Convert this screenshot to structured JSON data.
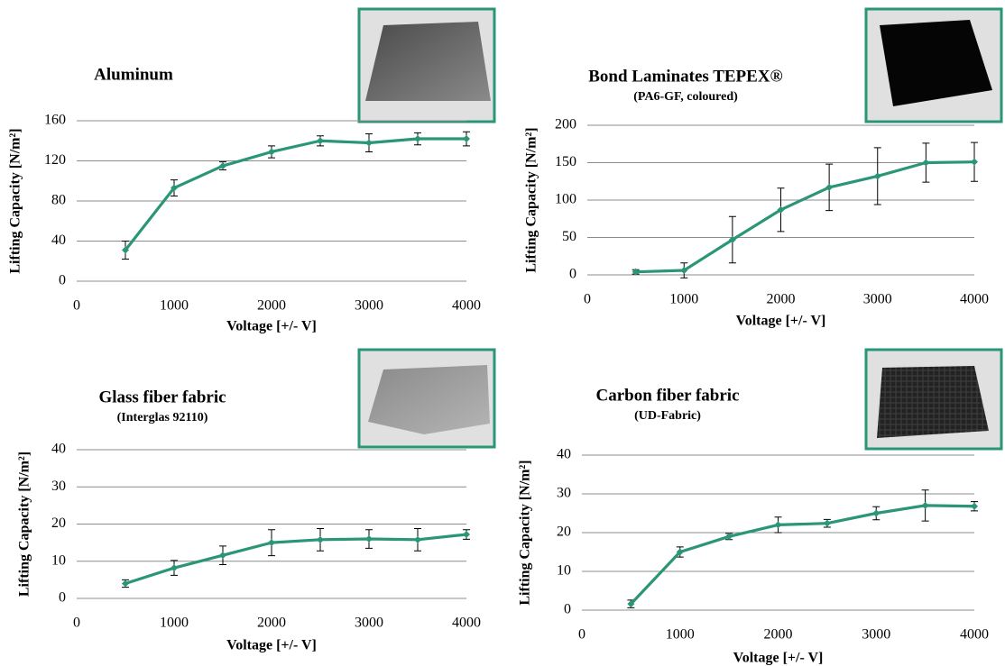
{
  "chart_data": [
    {
      "type": "line",
      "title": "Aluminum",
      "x_label": "Voltage [+/- V]",
      "y_label": "Lifting Capacity [N/m²]",
      "x": [
        500,
        1000,
        1500,
        2000,
        2500,
        3000,
        3500,
        4000
      ],
      "series": [
        {
          "color": "#2a9677",
          "values": [
            31,
            93,
            115,
            129,
            140,
            138,
            142,
            142
          ],
          "errors": [
            9,
            8,
            4,
            6,
            5,
            9,
            6,
            7
          ]
        }
      ],
      "xlim": [
        0,
        4000
      ],
      "xticks": [
        0,
        1000,
        2000,
        3000,
        4000
      ],
      "ylim": [
        0,
        160
      ],
      "yticks": [
        0,
        40,
        80,
        120,
        160
      ],
      "grid": true
    },
    {
      "type": "line",
      "title": "Bond Laminates TEPEX®",
      "subtitle": "(PA6-GF, coloured)",
      "x_label": "Voltage [+/- V]",
      "y_label": "Lifting Capacity [N/m²]",
      "x": [
        500,
        1000,
        1500,
        2000,
        2500,
        3000,
        3500,
        4000
      ],
      "series": [
        {
          "color": "#2a9677",
          "values": [
            4,
            6,
            47,
            87,
            117,
            132,
            150,
            151
          ],
          "errors": [
            3,
            10,
            31,
            29,
            31,
            38,
            26,
            26
          ]
        }
      ],
      "xlim": [
        0,
        4000
      ],
      "xticks": [
        0,
        1000,
        2000,
        3000,
        4000
      ],
      "ylim": [
        0,
        200
      ],
      "yticks": [
        0,
        50,
        100,
        150,
        200
      ],
      "grid": true
    },
    {
      "type": "line",
      "title": "Glass fiber fabric",
      "subtitle": "(Interglas 92110)",
      "x_label": "Voltage [+/- V]",
      "y_label": "Lifting Capacity [N/m²]",
      "x": [
        500,
        1000,
        1500,
        2000,
        2500,
        3000,
        3500,
        4000
      ],
      "series": [
        {
          "color": "#2a9677",
          "values": [
            4,
            8.2,
            11.6,
            15,
            15.8,
            16,
            15.8,
            17.2
          ],
          "errors": [
            1,
            2,
            2.5,
            3.5,
            3,
            2.5,
            3,
            1.3
          ]
        }
      ],
      "xlim": [
        0,
        4000
      ],
      "xticks": [
        0,
        1000,
        2000,
        3000,
        4000
      ],
      "ylim": [
        0,
        40
      ],
      "yticks": [
        0,
        10,
        20,
        30,
        40
      ],
      "grid": true
    },
    {
      "type": "line",
      "title": "Carbon fiber fabric",
      "subtitle": "(UD-Fabric)",
      "x_label": "Voltage [+/- V]",
      "y_label": "Lifting Capacity [N/m²]",
      "x": [
        500,
        1000,
        1500,
        2000,
        2500,
        3000,
        3500,
        4000
      ],
      "series": [
        {
          "color": "#2a9677",
          "values": [
            1.6,
            15,
            19,
            22,
            22.4,
            25,
            27,
            26.8
          ],
          "errors": [
            1,
            1.3,
            0.8,
            2,
            1,
            1.7,
            4,
            1.2
          ]
        }
      ],
      "xlim": [
        0,
        4000
      ],
      "xticks": [
        0,
        1000,
        2000,
        3000,
        4000
      ],
      "ylim": [
        0,
        40
      ],
      "yticks": [
        0,
        10,
        20,
        30,
        40
      ],
      "grid": true
    }
  ]
}
